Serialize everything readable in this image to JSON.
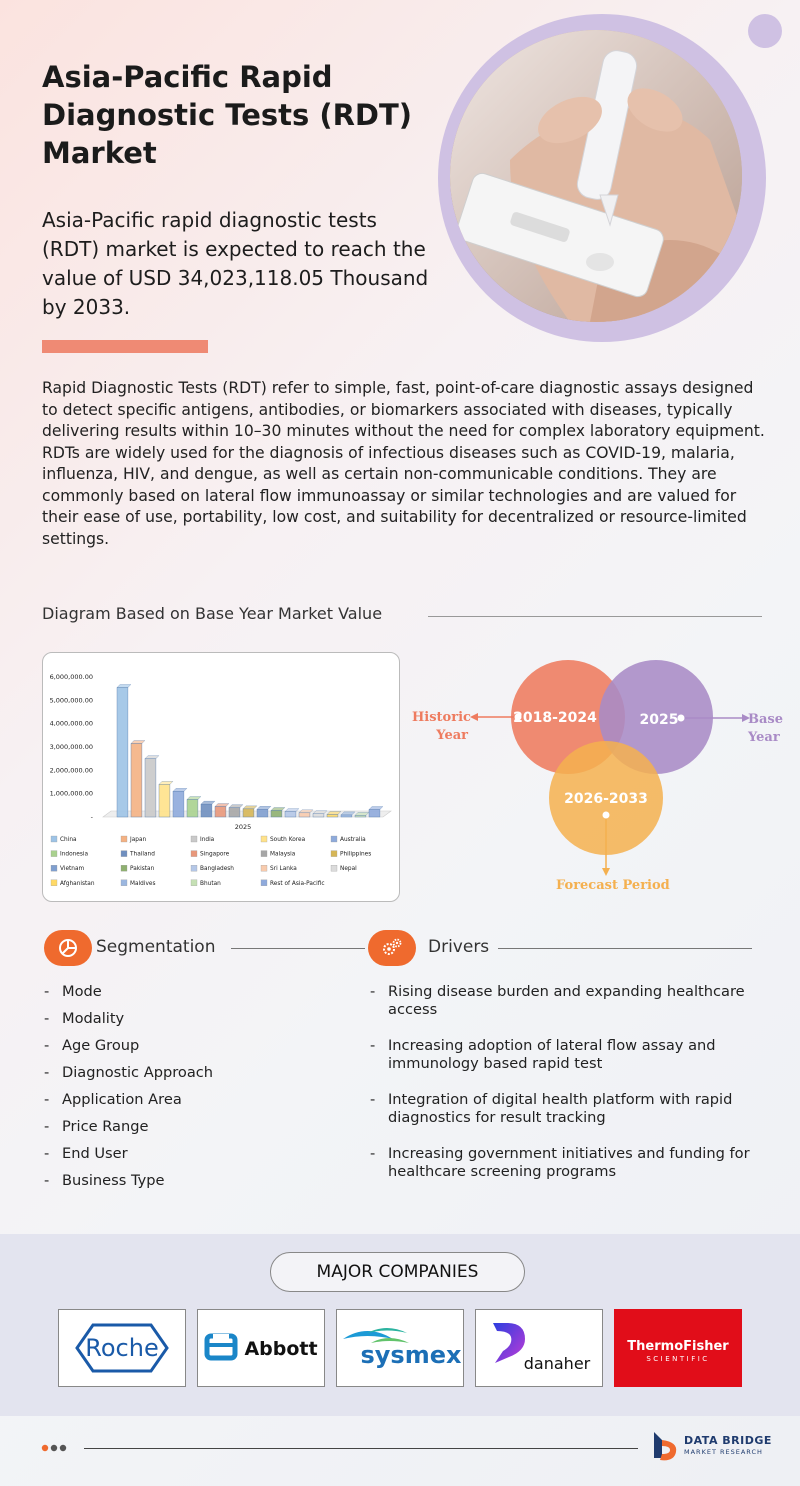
{
  "header": {
    "title": "Asia-Pacific Rapid Diagnostic Tests (RDT) Market",
    "subtitle": "Asia-Pacific rapid diagnostic tests (RDT) market is expected to reach the value of USD 34,023,118.05 Thousand by 2033."
  },
  "description": "Rapid Diagnostic Tests (RDT) refer to simple, fast, point-of-care diagnostic assays designed to detect specific antigens, antibodies, or biomarkers associated with diseases, typically delivering results within 10–30 minutes without the need for complex laboratory equipment. RDTs are widely used for the diagnosis of infectious diseases such as COVID-19, malaria, influenza, HIV, and dengue, as well as certain non-communicable conditions. They are commonly based on lateral flow immunoassay or similar technologies and are valued for their ease of use, portability, low cost, and suitability for decentralized or resource-limited settings.",
  "diagram_section": {
    "heading": "Diagram Based on Base Year Market Value"
  },
  "chart_data": {
    "type": "bar",
    "xlabel": "2025",
    "ylim": [
      0,
      6000000
    ],
    "y_ticks": [
      "-",
      "1,000,000.00",
      "2,000,000.00",
      "3,000,000.00",
      "4,000,000.00",
      "5,000,000.00",
      "6,000,000.00"
    ],
    "series": [
      {
        "name": "China",
        "value": 5550000,
        "color": "#9dc3e6"
      },
      {
        "name": "Japan",
        "value": 3150000,
        "color": "#f4b183"
      },
      {
        "name": "India",
        "value": 2500000,
        "color": "#c9c9c9"
      },
      {
        "name": "South Korea",
        "value": 1400000,
        "color": "#ffe28a"
      },
      {
        "name": "Australia",
        "value": 1100000,
        "color": "#8eaadb"
      },
      {
        "name": "Indonesia",
        "value": 750000,
        "color": "#a9d18e"
      },
      {
        "name": "Thailand",
        "value": 550000,
        "color": "#6f8fbf"
      },
      {
        "name": "Singapore",
        "value": 450000,
        "color": "#e8977a"
      },
      {
        "name": "Malaysia",
        "value": 400000,
        "color": "#a6a6a6"
      },
      {
        "name": "Philippines",
        "value": 350000,
        "color": "#d6b656"
      },
      {
        "name": "Vietnam",
        "value": 330000,
        "color": "#7f9fcf"
      },
      {
        "name": "Pakistan",
        "value": 280000,
        "color": "#8fb070"
      },
      {
        "name": "Bangladesh",
        "value": 230000,
        "color": "#b4c7e7"
      },
      {
        "name": "Sri Lanka",
        "value": 180000,
        "color": "#f8cbad"
      },
      {
        "name": "Nepal",
        "value": 140000,
        "color": "#dbdbdb"
      },
      {
        "name": "Afghanistan",
        "value": 110000,
        "color": "#ffd966"
      },
      {
        "name": "Maldives",
        "value": 90000,
        "color": "#9bb7e0"
      },
      {
        "name": "Bhutan",
        "value": 70000,
        "color": "#c5e0b4"
      },
      {
        "name": "Rest of Asia-Pacific",
        "value": 320000,
        "color": "#8faadc"
      }
    ]
  },
  "venn": {
    "historic_period": "2018-2024",
    "base_year_value": "2025",
    "forecast_period": "2026-2033",
    "historic_label": "Historic Year",
    "base_label": "Base Year",
    "forecast_label": "Forecast Period",
    "colors": {
      "historic": "#ee7b5f",
      "base": "#a98bc6",
      "forecast": "#f4b04f"
    }
  },
  "segmentation": {
    "title": "Segmentation",
    "items": [
      "Mode",
      "Modality",
      "Age Group",
      "Diagnostic Approach",
      "Application Area",
      "Price Range",
      "End User",
      "Business Type"
    ]
  },
  "drivers": {
    "title": "Drivers",
    "items": [
      "Rising disease burden and expanding healthcare access",
      "Increasing adoption of lateral flow assay and immunology based rapid test",
      "Integration of digital health platform with rapid diagnostics for result tracking",
      "Increasing government initiatives and funding for healthcare screening programs"
    ]
  },
  "companies": {
    "heading": "MAJOR COMPANIES",
    "logos": [
      "Roche",
      "Abbott",
      "sysmex",
      "danaher",
      "ThermoFisher",
      "SCIENTIFIC"
    ]
  },
  "footer": {
    "brand_line1": "DATA BRIDGE",
    "brand_line2": "MARKET RESEARCH"
  },
  "colors": {
    "accent": "#ef6a2e",
    "accent_bar": "#ef8a74",
    "lavender": "#cfc1e3"
  }
}
